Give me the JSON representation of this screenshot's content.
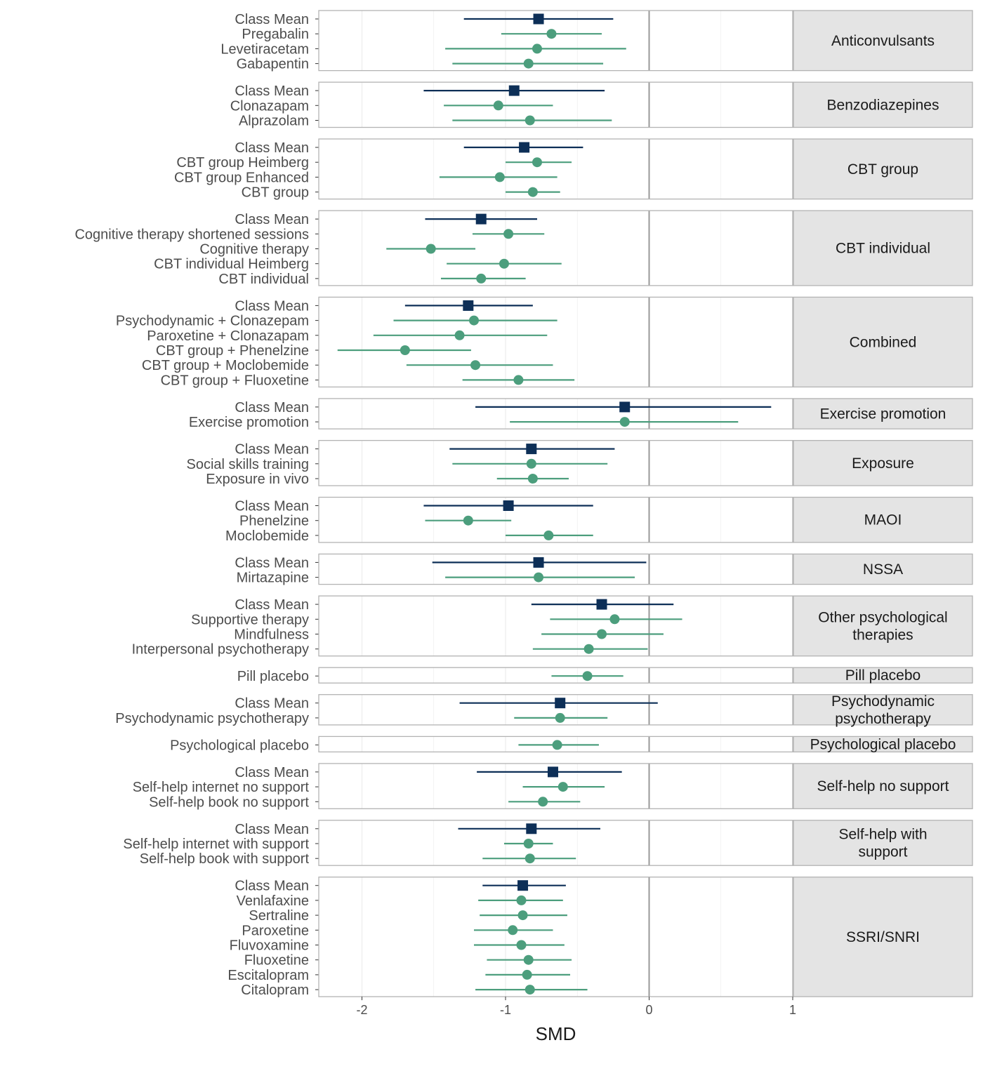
{
  "chart_data": {
    "type": "forest",
    "xlabel": "SMD",
    "xlim": [
      -2.3,
      1.0
    ],
    "x_ticks": [
      -2,
      -1,
      0,
      1
    ],
    "x_tick_labels": [
      "-2",
      "-1",
      "0",
      "1"
    ],
    "reference_line": 0,
    "grid": true,
    "colors": {
      "class_mean": "#0d2f57",
      "intervention": "#4c9e7d",
      "strip_fill": "#e4e4e4",
      "panel_border": "#b3b3b3",
      "ref_line": "#999999",
      "grid": "#ebebeb"
    },
    "groups": [
      {
        "label": "Anticonvulsants",
        "rows": [
          {
            "label": "Class Mean",
            "mean": -0.77,
            "lo": -1.29,
            "hi": -0.25,
            "class_mean": true
          },
          {
            "label": "Pregabalin",
            "mean": -0.68,
            "lo": -1.03,
            "hi": -0.33
          },
          {
            "label": "Levetiracetam",
            "mean": -0.78,
            "lo": -1.42,
            "hi": -0.16
          },
          {
            "label": "Gabapentin",
            "mean": -0.84,
            "lo": -1.37,
            "hi": -0.32
          }
        ]
      },
      {
        "label": "Benzodiazepines",
        "rows": [
          {
            "label": "Class Mean",
            "mean": -0.94,
            "lo": -1.57,
            "hi": -0.31,
            "class_mean": true
          },
          {
            "label": "Clonazapam",
            "mean": -1.05,
            "lo": -1.43,
            "hi": -0.67
          },
          {
            "label": "Alprazolam",
            "mean": -0.83,
            "lo": -1.37,
            "hi": -0.26
          }
        ]
      },
      {
        "label": "CBT group",
        "rows": [
          {
            "label": "Class Mean",
            "mean": -0.87,
            "lo": -1.29,
            "hi": -0.46,
            "class_mean": true
          },
          {
            "label": "CBT group Heimberg",
            "mean": -0.78,
            "lo": -1.0,
            "hi": -0.54
          },
          {
            "label": "CBT group Enhanced",
            "mean": -1.04,
            "lo": -1.46,
            "hi": -0.64
          },
          {
            "label": "CBT group",
            "mean": -0.81,
            "lo": -1.0,
            "hi": -0.62
          }
        ]
      },
      {
        "label": "CBT individual",
        "rows": [
          {
            "label": "Class Mean",
            "mean": -1.17,
            "lo": -1.56,
            "hi": -0.78,
            "class_mean": true
          },
          {
            "label": "Cognitive therapy shortened sessions",
            "mean": -0.98,
            "lo": -1.23,
            "hi": -0.73
          },
          {
            "label": "Cognitive therapy",
            "mean": -1.52,
            "lo": -1.83,
            "hi": -1.21
          },
          {
            "label": "CBT individual Heimberg",
            "mean": -1.01,
            "lo": -1.41,
            "hi": -0.61
          },
          {
            "label": "CBT individual",
            "mean": -1.17,
            "lo": -1.45,
            "hi": -0.86
          }
        ]
      },
      {
        "label": "Combined",
        "rows": [
          {
            "label": "Class Mean",
            "mean": -1.26,
            "lo": -1.7,
            "hi": -0.81,
            "class_mean": true
          },
          {
            "label": "Psychodynamic + Clonazepam",
            "mean": -1.22,
            "lo": -1.78,
            "hi": -0.64
          },
          {
            "label": "Paroxetine + Clonazapam",
            "mean": -1.32,
            "lo": -1.92,
            "hi": -0.71
          },
          {
            "label": "CBT group + Phenelzine",
            "mean": -1.7,
            "lo": -2.17,
            "hi": -1.24
          },
          {
            "label": "CBT group + Moclobemide",
            "mean": -1.21,
            "lo": -1.69,
            "hi": -0.67
          },
          {
            "label": "CBT group + Fluoxetine",
            "mean": -0.91,
            "lo": -1.3,
            "hi": -0.52
          }
        ]
      },
      {
        "label": "Exercise promotion",
        "rows": [
          {
            "label": "Class Mean",
            "mean": -0.17,
            "lo": -1.21,
            "hi": 0.85,
            "class_mean": true
          },
          {
            "label": "Exercise promotion",
            "mean": -0.17,
            "lo": -0.97,
            "hi": 0.62
          }
        ]
      },
      {
        "label": "Exposure",
        "rows": [
          {
            "label": "Class Mean",
            "mean": -0.82,
            "lo": -1.39,
            "hi": -0.24,
            "class_mean": true
          },
          {
            "label": "Social skills training",
            "mean": -0.82,
            "lo": -1.37,
            "hi": -0.29
          },
          {
            "label": "Exposure in vivo",
            "mean": -0.81,
            "lo": -1.06,
            "hi": -0.56
          }
        ]
      },
      {
        "label": "MAOI",
        "rows": [
          {
            "label": "Class Mean",
            "mean": -0.98,
            "lo": -1.57,
            "hi": -0.39,
            "class_mean": true
          },
          {
            "label": "Phenelzine",
            "mean": -1.26,
            "lo": -1.56,
            "hi": -0.96
          },
          {
            "label": "Moclobemide",
            "mean": -0.7,
            "lo": -1.0,
            "hi": -0.39
          }
        ]
      },
      {
        "label": "NSSA",
        "rows": [
          {
            "label": "Class Mean",
            "mean": -0.77,
            "lo": -1.51,
            "hi": -0.02,
            "class_mean": true
          },
          {
            "label": "Mirtazapine",
            "mean": -0.77,
            "lo": -1.42,
            "hi": -0.1
          }
        ]
      },
      {
        "label": "Other psychological therapies",
        "label_lines": [
          "Other psychological",
          "therapies"
        ],
        "rows": [
          {
            "label": "Class Mean",
            "mean": -0.33,
            "lo": -0.82,
            "hi": 0.17,
            "class_mean": true
          },
          {
            "label": "Supportive therapy",
            "mean": -0.24,
            "lo": -0.69,
            "hi": 0.23
          },
          {
            "label": "Mindfulness",
            "mean": -0.33,
            "lo": -0.75,
            "hi": 0.1
          },
          {
            "label": "Interpersonal psychotherapy",
            "mean": -0.42,
            "lo": -0.81,
            "hi": -0.01
          }
        ]
      },
      {
        "label": "Pill placebo",
        "rows": [
          {
            "label": "Pill placebo",
            "mean": -0.43,
            "lo": -0.68,
            "hi": -0.18
          }
        ]
      },
      {
        "label": "Psychodynamic psychotherapy",
        "label_lines": [
          "Psychodynamic",
          "psychotherapy"
        ],
        "rows": [
          {
            "label": "Class Mean",
            "mean": -0.62,
            "lo": -1.32,
            "hi": 0.06,
            "class_mean": true
          },
          {
            "label": "Psychodynamic psychotherapy",
            "mean": -0.62,
            "lo": -0.94,
            "hi": -0.29
          }
        ]
      },
      {
        "label": "Psychological placebo",
        "rows": [
          {
            "label": "Psychological placebo",
            "mean": -0.64,
            "lo": -0.91,
            "hi": -0.35
          }
        ]
      },
      {
        "label": "Self-help no support",
        "rows": [
          {
            "label": "Class Mean",
            "mean": -0.67,
            "lo": -1.2,
            "hi": -0.19,
            "class_mean": true
          },
          {
            "label": "Self-help internet no support",
            "mean": -0.6,
            "lo": -0.88,
            "hi": -0.31
          },
          {
            "label": "Self-help book no support",
            "mean": -0.74,
            "lo": -0.98,
            "hi": -0.48
          }
        ]
      },
      {
        "label": "Self-help with support",
        "label_lines": [
          "Self-help with",
          "support"
        ],
        "rows": [
          {
            "label": "Class Mean",
            "mean": -0.82,
            "lo": -1.33,
            "hi": -0.34,
            "class_mean": true
          },
          {
            "label": "Self-help internet with support",
            "mean": -0.84,
            "lo": -1.01,
            "hi": -0.67
          },
          {
            "label": "Self-help book with support",
            "mean": -0.83,
            "lo": -1.16,
            "hi": -0.51
          }
        ]
      },
      {
        "label": "SSRI/SNRI",
        "rows": [
          {
            "label": "Class Mean",
            "mean": -0.88,
            "lo": -1.16,
            "hi": -0.58,
            "class_mean": true
          },
          {
            "label": "Venlafaxine",
            "mean": -0.89,
            "lo": -1.19,
            "hi": -0.6
          },
          {
            "label": "Sertraline",
            "mean": -0.88,
            "lo": -1.18,
            "hi": -0.57
          },
          {
            "label": "Paroxetine",
            "mean": -0.95,
            "lo": -1.22,
            "hi": -0.67
          },
          {
            "label": "Fluvoxamine",
            "mean": -0.89,
            "lo": -1.22,
            "hi": -0.59
          },
          {
            "label": "Fluoxetine",
            "mean": -0.84,
            "lo": -1.13,
            "hi": -0.54
          },
          {
            "label": "Escitalopram",
            "mean": -0.85,
            "lo": -1.14,
            "hi": -0.55
          },
          {
            "label": "Citalopram",
            "mean": -0.83,
            "lo": -1.21,
            "hi": -0.43
          }
        ]
      }
    ]
  }
}
